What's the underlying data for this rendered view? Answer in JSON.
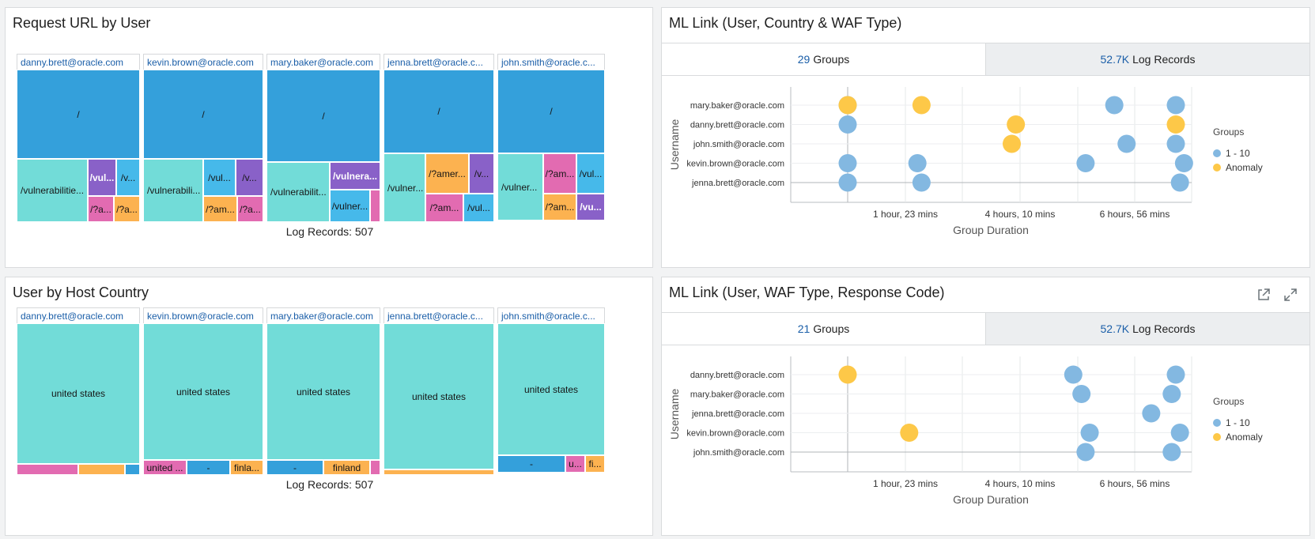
{
  "panels": {
    "request_url": {
      "title": "Request URL by User",
      "log_records": "Log Records: 507",
      "users": [
        {
          "label": "danny.brett@oracle.com",
          "cells": [
            "/",
            "/vulnerabilitie...",
            "/vul...",
            "/v...",
            "/?a...",
            "/?a..."
          ]
        },
        {
          "label": "kevin.brown@oracle.com",
          "cells": [
            "/",
            "/vulnerabili...",
            "/vul...",
            "/v...",
            "/?am...",
            "/?a..."
          ]
        },
        {
          "label": "mary.baker@oracle.com",
          "cells": [
            "/",
            "/vulnerabilit...",
            "/vulnera...",
            "/vulner..."
          ]
        },
        {
          "label": "jenna.brett@oracle.c...",
          "cells": [
            "/",
            "/vulner...",
            "/?amer...",
            "/v...",
            "/?am...",
            "/vul..."
          ]
        },
        {
          "label": "john.smith@oracle.c...",
          "cells": [
            "/",
            "/vulner...",
            "/?am...",
            "/vul...",
            "/?am...",
            "/vu..."
          ]
        }
      ]
    },
    "host_country": {
      "title": "User by Host Country",
      "log_records": "Log Records: 507",
      "users": [
        {
          "label": "danny.brett@oracle.com",
          "cells": [
            "united states"
          ]
        },
        {
          "label": "kevin.brown@oracle.com",
          "cells": [
            "united states",
            "united ...",
            "-",
            "finla..."
          ]
        },
        {
          "label": "mary.baker@oracle.com",
          "cells": [
            "united states",
            "-",
            "finland"
          ]
        },
        {
          "label": "jenna.brett@oracle.c...",
          "cells": [
            "united states"
          ]
        },
        {
          "label": "john.smith@oracle.c...",
          "cells": [
            "united states",
            "-",
            "u...",
            "fi..."
          ]
        }
      ]
    },
    "ml_country": {
      "title": "ML Link (User, Country & WAF Type)",
      "groups_num": "29",
      "groups_label": "Groups",
      "records_num": "52.7K",
      "records_label": "Log Records"
    },
    "ml_response": {
      "title": "ML Link (User, WAF Type, Response Code)",
      "groups_num": "21",
      "groups_label": "Groups",
      "records_num": "52.7K",
      "records_label": "Log Records"
    }
  },
  "colors": {
    "teal": "#72dcd8",
    "blue": "#34a0db",
    "purple": "#8961c8",
    "orange": "#fcb250",
    "pink": "#e26bb1",
    "cyan": "#46b9ea",
    "bubble_blue": "#83b8e1",
    "bubble_yellow": "#fdc848"
  },
  "chart_data": [
    {
      "type": "scatter",
      "title": "ML Link (User, Country & WAF Type)",
      "xlabel": "Group Duration",
      "ylabel": "Username",
      "xticks": [
        "1 hour, 23 mins",
        "4 hours, 10 mins",
        "6 hours, 56 mins"
      ],
      "categories": [
        "mary.baker@oracle.com",
        "danny.brett@oracle.com",
        "john.smith@oracle.com",
        "kevin.brown@oracle.com",
        "jenna.brett@oracle.com"
      ],
      "legend_title": "Groups",
      "legend_position": "right",
      "series": [
        {
          "name": "1 - 10",
          "points": [
            {
              "user": "mary.baker@oracle.com",
              "x_hours": 0.0
            },
            {
              "user": "mary.baker@oracle.com",
              "x_hours": 6.5
            },
            {
              "user": "mary.baker@oracle.com",
              "x_hours": 8.0
            },
            {
              "user": "danny.brett@oracle.com",
              "x_hours": 0.0
            },
            {
              "user": "john.smith@oracle.com",
              "x_hours": 6.8
            },
            {
              "user": "john.smith@oracle.com",
              "x_hours": 8.0
            },
            {
              "user": "kevin.brown@oracle.com",
              "x_hours": 0.0
            },
            {
              "user": "kevin.brown@oracle.com",
              "x_hours": 1.7
            },
            {
              "user": "kevin.brown@oracle.com",
              "x_hours": 5.8
            },
            {
              "user": "kevin.brown@oracle.com",
              "x_hours": 8.2
            },
            {
              "user": "jenna.brett@oracle.com",
              "x_hours": 0.0
            },
            {
              "user": "jenna.brett@oracle.com",
              "x_hours": 1.8
            },
            {
              "user": "jenna.brett@oracle.com",
              "x_hours": 8.1
            }
          ]
        },
        {
          "name": "Anomaly",
          "points": [
            {
              "user": "mary.baker@oracle.com",
              "x_hours": 0.0
            },
            {
              "user": "mary.baker@oracle.com",
              "x_hours": 1.8
            },
            {
              "user": "danny.brett@oracle.com",
              "x_hours": 4.1
            },
            {
              "user": "danny.brett@oracle.com",
              "x_hours": 8.0
            },
            {
              "user": "john.smith@oracle.com",
              "x_hours": 4.0
            }
          ]
        }
      ]
    },
    {
      "type": "scatter",
      "title": "ML Link (User, WAF Type, Response Code)",
      "xlabel": "Group Duration",
      "ylabel": "Username",
      "xticks": [
        "1 hour, 23 mins",
        "4 hours, 10 mins",
        "6 hours, 56 mins"
      ],
      "categories": [
        "danny.brett@oracle.com",
        "mary.baker@oracle.com",
        "jenna.brett@oracle.com",
        "kevin.brown@oracle.com",
        "john.smith@oracle.com"
      ],
      "legend_title": "Groups",
      "legend_position": "right",
      "series": [
        {
          "name": "1 - 10",
          "points": [
            {
              "user": "danny.brett@oracle.com",
              "x_hours": 5.5
            },
            {
              "user": "danny.brett@oracle.com",
              "x_hours": 8.0
            },
            {
              "user": "mary.baker@oracle.com",
              "x_hours": 5.7
            },
            {
              "user": "mary.baker@oracle.com",
              "x_hours": 7.9
            },
            {
              "user": "jenna.brett@oracle.com",
              "x_hours": 7.4
            },
            {
              "user": "kevin.brown@oracle.com",
              "x_hours": 5.9
            },
            {
              "user": "kevin.brown@oracle.com",
              "x_hours": 8.1
            },
            {
              "user": "john.smith@oracle.com",
              "x_hours": 5.8
            },
            {
              "user": "john.smith@oracle.com",
              "x_hours": 7.9
            }
          ]
        },
        {
          "name": "Anomaly",
          "points": [
            {
              "user": "danny.brett@oracle.com",
              "x_hours": 0.0
            },
            {
              "user": "kevin.brown@oracle.com",
              "x_hours": 1.5
            }
          ]
        }
      ]
    }
  ]
}
